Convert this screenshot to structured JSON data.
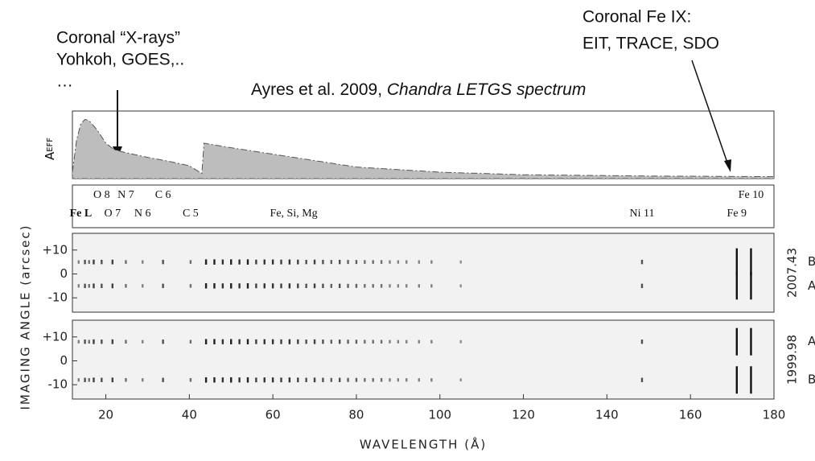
{
  "chart_data": {
    "type": "spectrum",
    "annotations": [
      "Coronal “X-rays”",
      "Yohkoh, GOES,..",
      "…",
      "Ayres et al. 2009, ",
      "Chandra LETGS spectrum",
      "Coronal Fe IX:",
      "EIT, TRACE, SDO"
    ],
    "aeff_label": "A",
    "aeff_label_sub": "EFF",
    "x_label": "WAVELENGTH (Å)",
    "y_label": "IMAGING ANGLE (arcsec)",
    "xlim": [
      12,
      180
    ],
    "xticks": [
      20,
      40,
      60,
      80,
      100,
      120,
      140,
      160,
      180
    ],
    "ylim": [
      -16,
      17
    ],
    "yticks": [
      {
        "value": 10,
        "label": "+10"
      },
      0,
      -10
    ],
    "aeff": {
      "color": "#bdbdbd",
      "ylim": [
        0,
        1
      ],
      "x": [
        12,
        13,
        14,
        15,
        16,
        18,
        20,
        22,
        25,
        30,
        35,
        40,
        43,
        43.5,
        50,
        60,
        70,
        80,
        100,
        120,
        150,
        180
      ],
      "values": [
        0.1,
        0.6,
        0.85,
        0.92,
        0.9,
        0.75,
        0.55,
        0.45,
        0.4,
        0.33,
        0.27,
        0.2,
        0.08,
        0.55,
        0.48,
        0.38,
        0.28,
        0.18,
        0.1,
        0.06,
        0.04,
        0.03
      ]
    },
    "line_labels_upper": [
      {
        "label": "O 8",
        "x": 19
      },
      {
        "label": "N 7",
        "x": 24.8
      },
      {
        "label": "C 6",
        "x": 33.7
      },
      {
        "label": "Fe 10",
        "x": 174.5
      }
    ],
    "line_labels_lower": [
      {
        "label": "Fe L",
        "x": 14
      },
      {
        "label": "O 7",
        "x": 21.6
      },
      {
        "label": "N 6",
        "x": 28.8
      },
      {
        "label": "C 5",
        "x": 40.3
      },
      {
        "label": "Fe, Si, Mg",
        "x": 65
      },
      {
        "label": "Ni 11",
        "x": 148.4
      },
      {
        "label": "Fe 9",
        "x": 171.1
      }
    ],
    "lines": {
      "x": [
        13.5,
        15.0,
        16.0,
        17.1,
        19.0,
        21.6,
        24.8,
        28.8,
        33.7,
        40.3,
        44,
        46,
        48,
        50,
        52,
        54,
        56,
        58,
        60,
        62,
        64,
        66,
        68,
        70,
        72,
        74,
        76,
        78,
        80,
        82,
        84,
        86,
        88,
        90,
        92,
        95,
        98,
        105,
        148.4,
        171.1,
        174.5
      ],
      "values": [
        0.3,
        0.6,
        0.4,
        0.7,
        0.6,
        0.7,
        0.4,
        0.3,
        0.6,
        0.4,
        0.9,
        0.9,
        0.8,
        0.9,
        0.8,
        0.9,
        0.7,
        0.8,
        0.8,
        0.7,
        0.8,
        0.7,
        0.6,
        0.7,
        0.6,
        0.5,
        0.6,
        0.5,
        0.5,
        0.4,
        0.4,
        0.4,
        0.3,
        0.3,
        0.3,
        0.3,
        0.3,
        0.2,
        0.6,
        1,
        1
      ]
    },
    "panels": [
      {
        "epoch": "2007.43",
        "sources": [
          {
            "label": "B",
            "offset": 5
          },
          {
            "label": "A",
            "offset": -5
          }
        ]
      },
      {
        "epoch": "1999.98",
        "sources": [
          {
            "label": "A",
            "offset": 8
          },
          {
            "label": "B",
            "offset": -8
          }
        ]
      }
    ]
  }
}
